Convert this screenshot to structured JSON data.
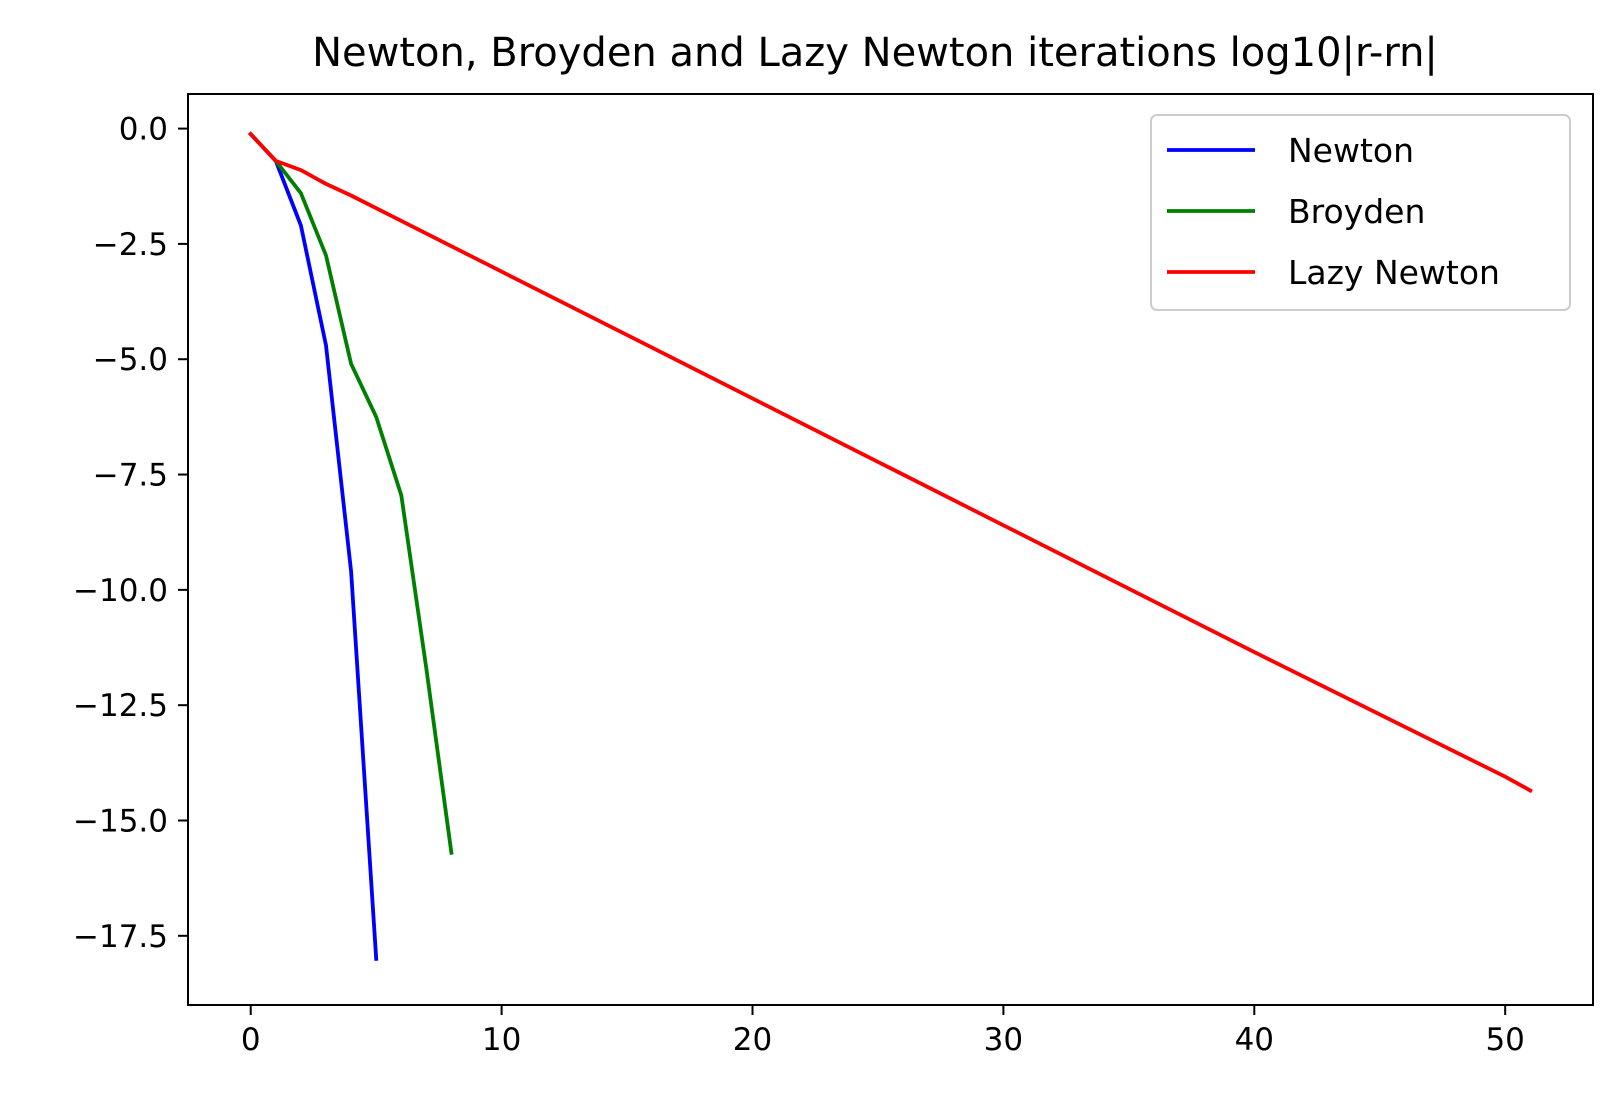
{
  "chart_data": {
    "type": "line",
    "title": "Newton, Broyden and Lazy Newton iterations log10|r-rn|",
    "xlabel": "",
    "ylabel": "",
    "xlim": [
      -2.5,
      53.5
    ],
    "ylim": [
      -19.0,
      0.75
    ],
    "xticks": [
      0,
      10,
      20,
      30,
      40,
      50
    ],
    "yticks": [
      0.0,
      -2.5,
      -5.0,
      -7.5,
      -10.0,
      -12.5,
      -15.0,
      -17.5
    ],
    "xtick_labels": [
      "0",
      "10",
      "20",
      "30",
      "40",
      "50"
    ],
    "ytick_labels": [
      "0.0",
      "−2.5",
      "−5.0",
      "−7.5",
      "−10.0",
      "−12.5",
      "−15.0",
      "−17.5"
    ],
    "grid": false,
    "legend": "top-right",
    "series": [
      {
        "name": "Newton",
        "color": "#0000ff",
        "x": [
          0,
          1,
          2,
          3,
          4,
          5
        ],
        "y": [
          -0.12,
          -0.7,
          -2.1,
          -4.7,
          -9.6,
          -18.0
        ]
      },
      {
        "name": "Broyden",
        "color": "#008000",
        "x": [
          0,
          1,
          2,
          3,
          4,
          5,
          6,
          7,
          8
        ],
        "y": [
          -0.12,
          -0.7,
          -1.4,
          -2.75,
          -5.1,
          -6.25,
          -7.95,
          -11.7,
          -15.7
        ]
      },
      {
        "name": "Lazy Newton",
        "color": "#ff0000",
        "x": [
          0,
          1,
          2,
          3,
          4,
          10,
          20,
          30,
          40,
          50,
          51
        ],
        "y": [
          -0.12,
          -0.7,
          -0.9,
          -1.2,
          -1.45,
          -3.1,
          -5.85,
          -8.6,
          -11.35,
          -14.05,
          -14.35
        ]
      }
    ]
  }
}
